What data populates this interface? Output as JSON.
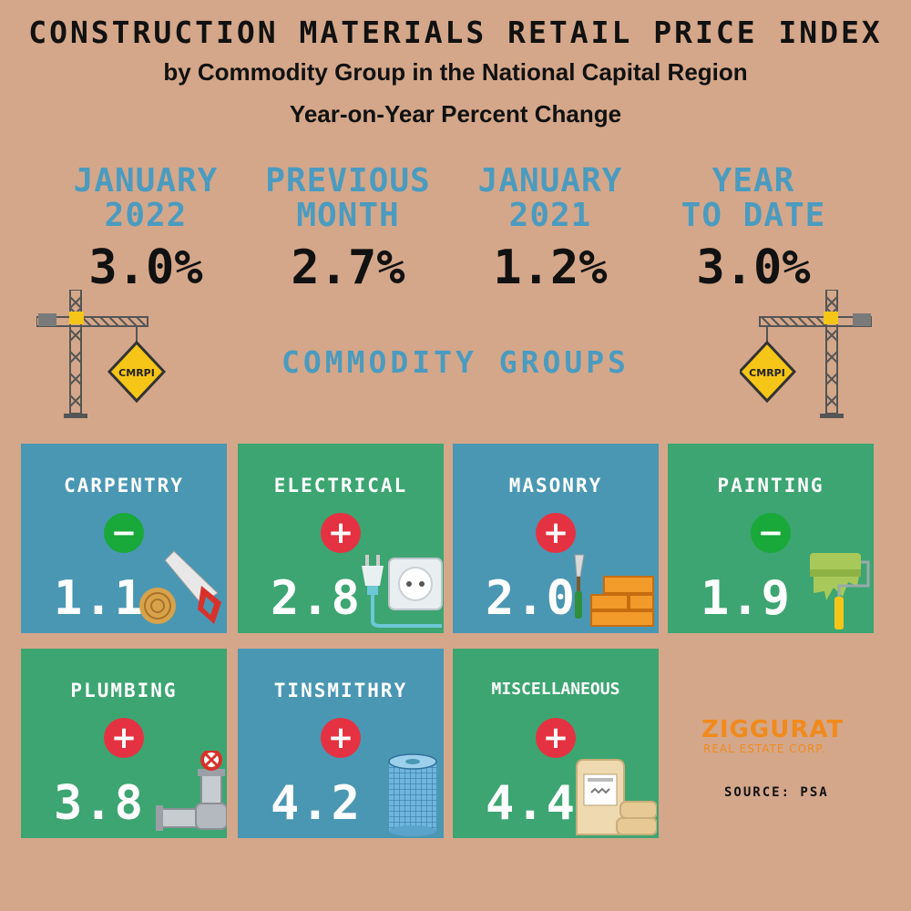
{
  "header": {
    "title": "CONSTRUCTION MATERIALS RETAIL PRICE INDEX",
    "subtitle_1": "by Commodity Group in the National Capital Region",
    "subtitle_2": "Year-on-Year Percent Change"
  },
  "stats": [
    {
      "label_1": "JANUARY",
      "label_2": "2022",
      "value": "3.0%"
    },
    {
      "label_1": "PREVIOUS",
      "label_2": "MONTH",
      "value": "2.7%"
    },
    {
      "label_1": "JANUARY",
      "label_2": "2021",
      "value": "1.2%"
    },
    {
      "label_1": "YEAR",
      "label_2": "TO DATE",
      "value": "3.0%"
    }
  ],
  "sign_badge": "CMRPI",
  "groups_heading": "COMMODITY GROUPS",
  "groups": [
    {
      "name": "CARPENTRY",
      "sign": "−",
      "value": "1.1",
      "icon": "saw-icon"
    },
    {
      "name": "ELECTRICAL",
      "sign": "+",
      "value": "2.8",
      "icon": "outlet-plug-icon"
    },
    {
      "name": "MASONRY",
      "sign": "+",
      "value": "2.0",
      "icon": "bricks-trowel-icon"
    },
    {
      "name": "PAINTING",
      "sign": "−",
      "value": "1.9",
      "icon": "paint-roller-icon"
    },
    {
      "name": "PLUMBING",
      "sign": "+",
      "value": "3.8",
      "icon": "pipe-valve-icon"
    },
    {
      "name": "TINSMITHRY",
      "sign": "+",
      "value": "4.2",
      "icon": "mesh-roll-icon"
    },
    {
      "name": "MISCELLANEOUS",
      "sign": "+",
      "value": "4.4",
      "icon": "cement-bags-icon"
    }
  ],
  "colors": {
    "background": "#d4a78a",
    "accent_blue": "#4a9bbf",
    "tile_blue": "#4a97b3",
    "tile_green": "#3da571",
    "increase": "#e53242",
    "decrease": "#19a83a",
    "brand": "#f08a1c"
  },
  "logo": {
    "name": "ZIGGURAT",
    "sub": "REAL ESTATE CORP."
  },
  "source": "SOURCE: PSA"
}
